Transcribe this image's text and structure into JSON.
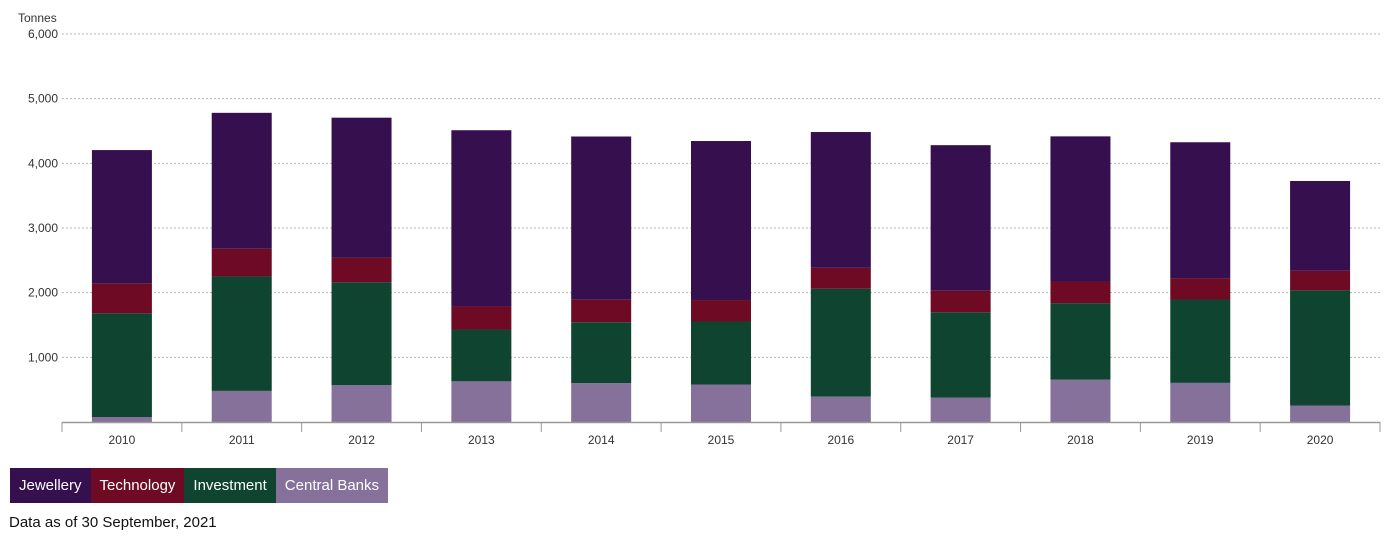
{
  "chart_data": {
    "type": "bar",
    "stacked": true,
    "ylabel": "Tonnes",
    "ylim": [
      0,
      6000
    ],
    "yticks": [
      0,
      1000,
      2000,
      3000,
      4000,
      5000,
      6000
    ],
    "ytick_labels": [
      "",
      "1,000",
      "2,000",
      "3,000",
      "4,000",
      "5,000",
      "6,000"
    ],
    "categories": [
      "2010",
      "2011",
      "2012",
      "2013",
      "2014",
      "2015",
      "2016",
      "2017",
      "2018",
      "2019",
      "2020"
    ],
    "series": [
      {
        "name": "Central Banks",
        "color": "#86719a",
        "values": [
          77,
          481,
          569,
          629,
          601,
          580,
          395,
          379,
          656,
          605,
          255
        ]
      },
      {
        "name": "Investment",
        "color": "#0f4431",
        "values": [
          1604,
          1770,
          1591,
          801,
          942,
          974,
          1666,
          1318,
          1182,
          1289,
          1781
        ]
      },
      {
        "name": "Technology",
        "color": "#6e0a23",
        "values": [
          463,
          429,
          382,
          357,
          348,
          332,
          323,
          333,
          335,
          327,
          302
        ]
      },
      {
        "name": "Jewellery",
        "color": "#360f4e",
        "values": [
          2061,
          2101,
          2164,
          2725,
          2524,
          2459,
          2100,
          2251,
          2244,
          2105,
          1389
        ]
      }
    ],
    "grid": true
  },
  "legend": {
    "items": [
      {
        "label": "Jewellery",
        "color": "#360f4e"
      },
      {
        "label": "Technology",
        "color": "#6e0a23"
      },
      {
        "label": "Investment",
        "color": "#0f4431"
      },
      {
        "label": "Central Banks",
        "color": "#86719a"
      }
    ]
  },
  "footnote": "Data as of 30 September, 2021"
}
